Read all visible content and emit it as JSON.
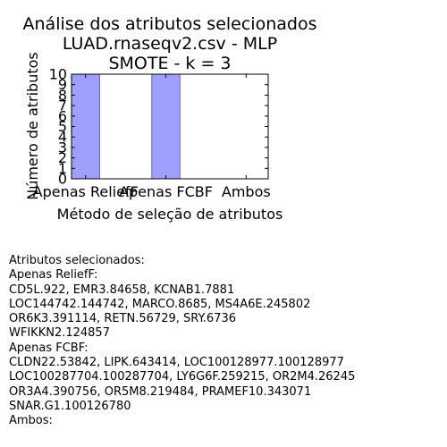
{
  "chart_data": {
    "type": "bar",
    "title_lines": [
      "Análise dos atributos selecionados",
      "LUAD.rnaseqv2.csv - MLP",
      "SMOTE - k = 3"
    ],
    "xlabel": "Método de seleção de atributos",
    "ylabel": "Número de atributos",
    "categories": [
      "Apenas ReliefF",
      "Apenas FCBF",
      "Ambos"
    ],
    "values": [
      10,
      10,
      0
    ],
    "ylim": [
      0,
      10
    ],
    "yticks": [
      "0",
      "1",
      "2",
      "3",
      "4",
      "5",
      "6",
      "7",
      "8",
      "9",
      "10"
    ],
    "bar_color": "#9f9ffe",
    "bar_edge_color": "#5f5fbf",
    "grid": false,
    "legend": "none"
  },
  "notes": {
    "heading": "Atributos selecionados:",
    "lines": [
      "Apenas ReliefF:",
      "CD5L.922, EMR3.84658, KCNAB1.7881",
      "LOC144742.144742, MARCO.8685, MS4A6E.245802",
      "OR6K3.391114, RETN.56729, SRY.6736",
      "WFIKKN2.124857",
      "Apenas FCBF:",
      "CLDN22.53842, LIPK.643414, LOC100128977.100128977",
      "LOC100287704.100287704, LY6G6F.259215, OR2M4.26245",
      "OR3A4.390756, OR5M8.219484, PRAMEF10.343071",
      "SNAR.G1.100126780",
      "Ambos:"
    ]
  }
}
